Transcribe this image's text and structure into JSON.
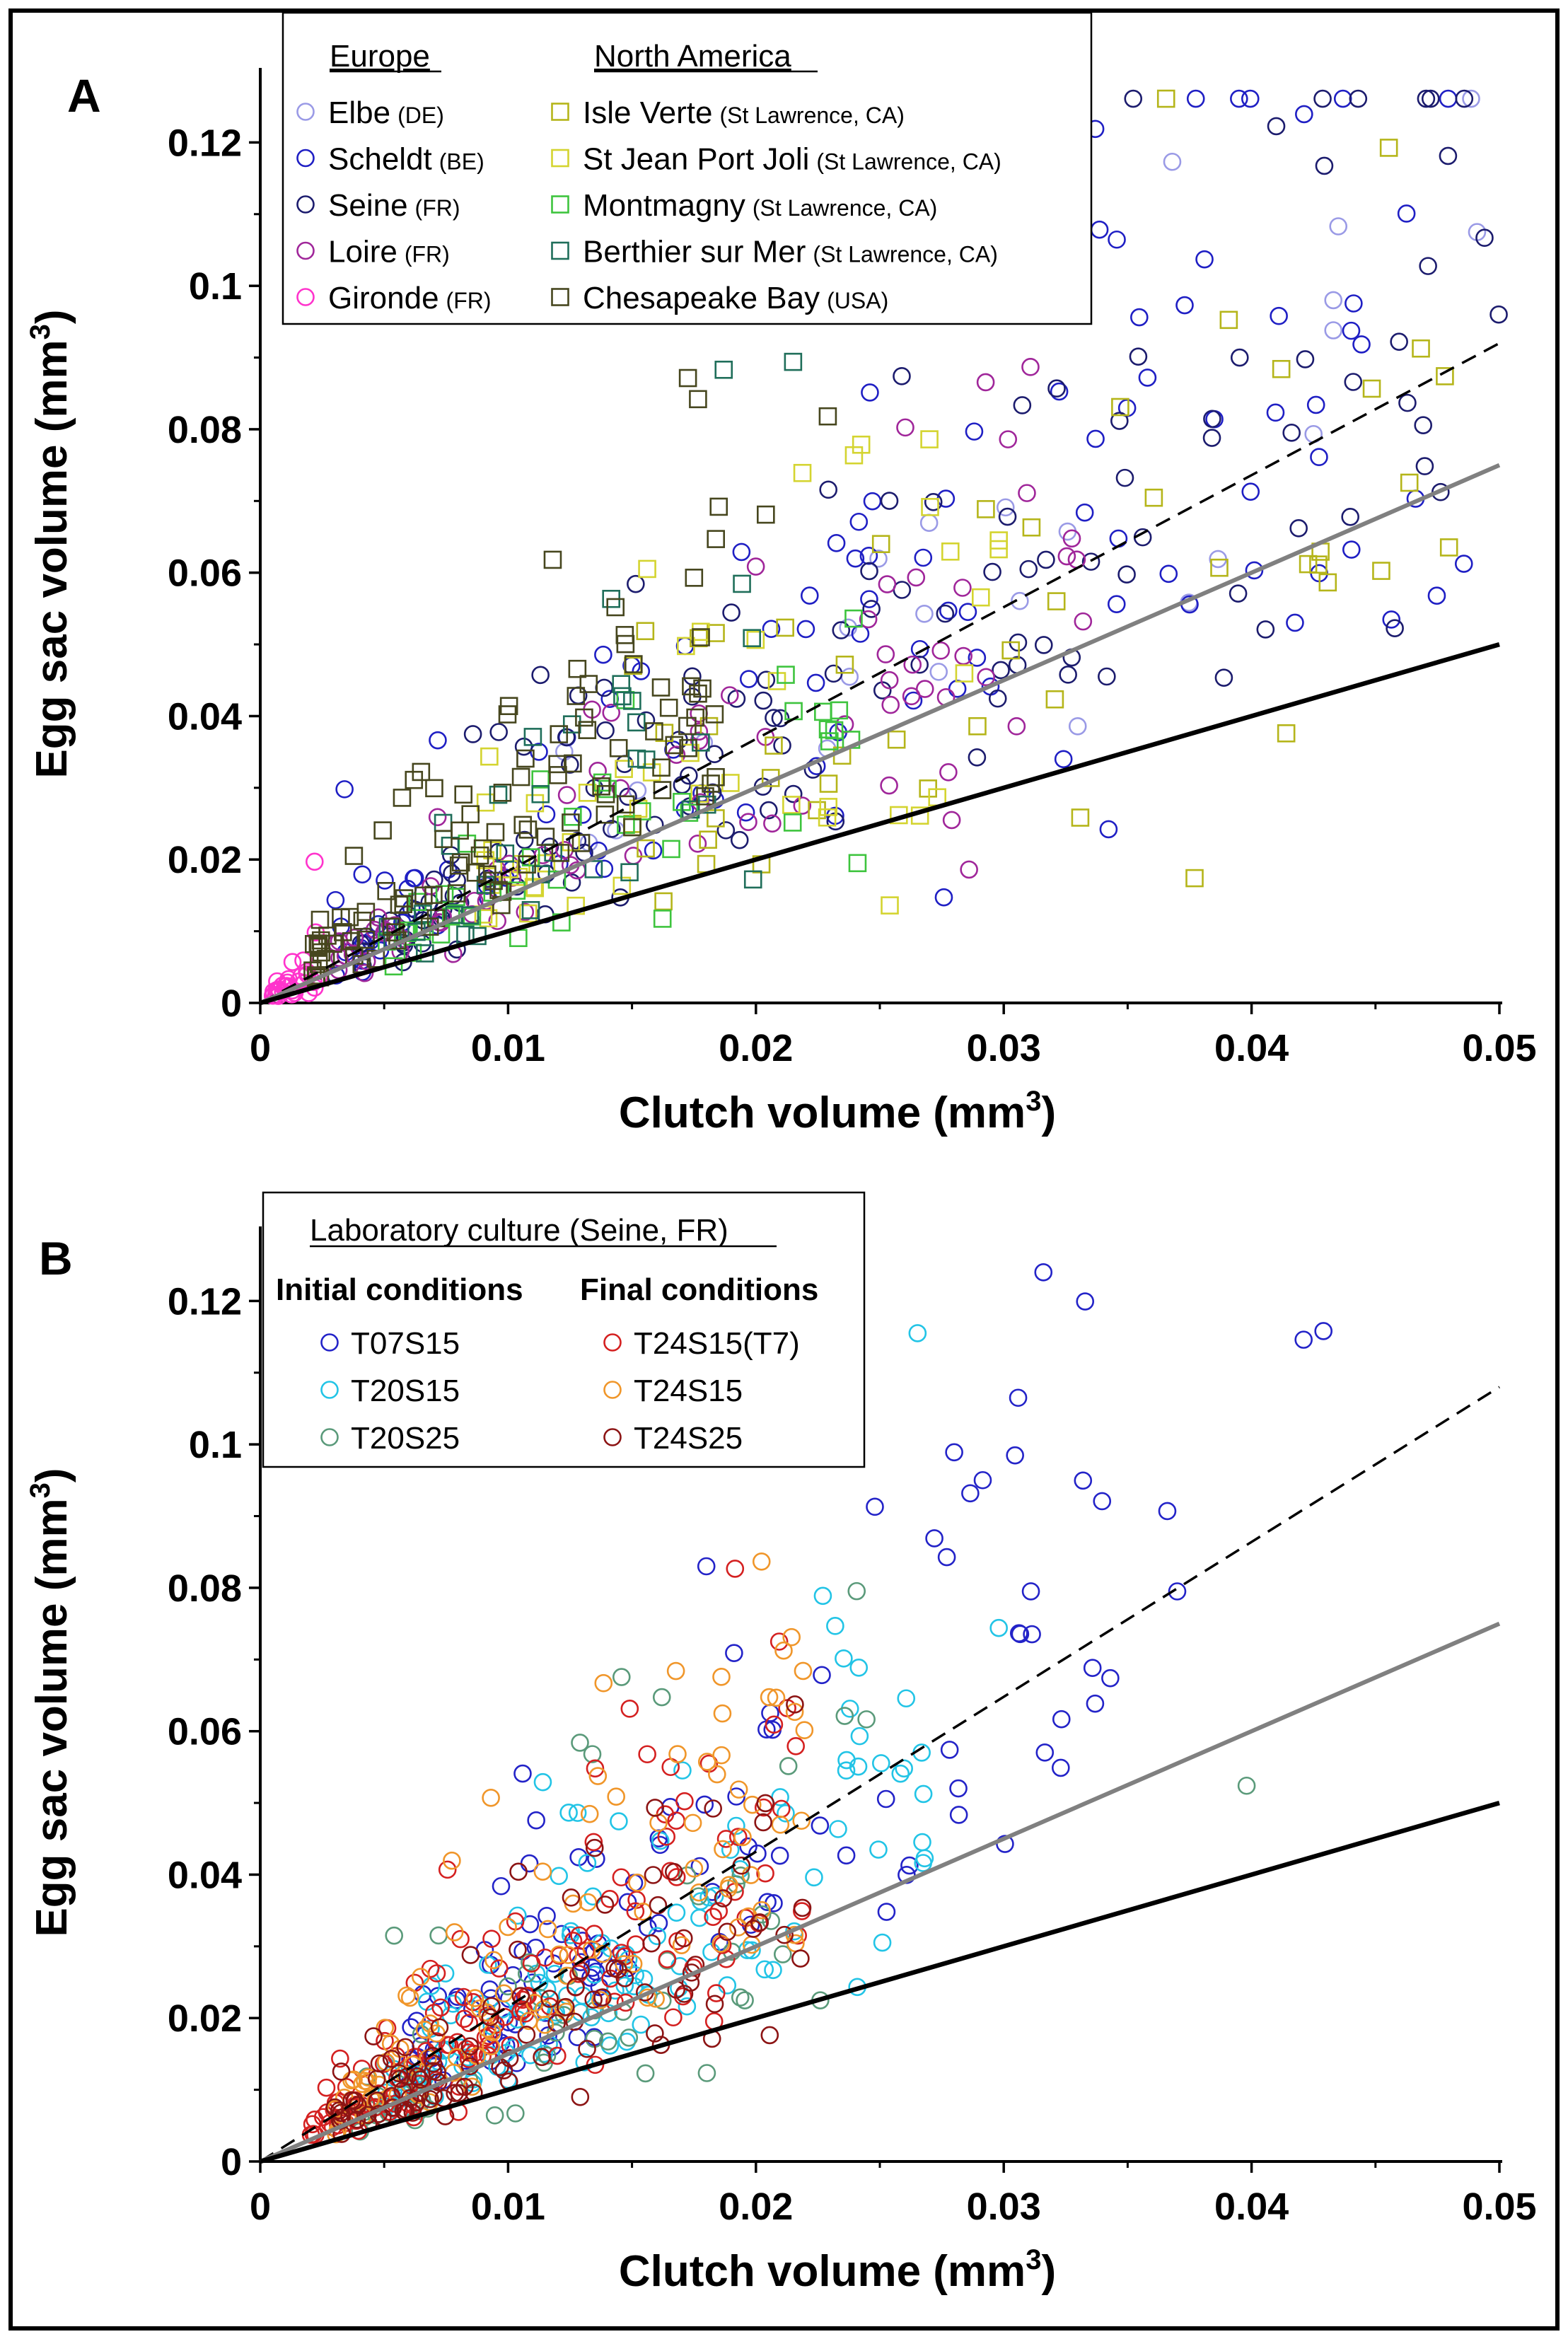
{
  "figure": {
    "description_free": true
  },
  "chart_data": [
    {
      "type": "scatter",
      "panel_label": "A",
      "xlabel": "Clutch volume (mm",
      "xlabel_sup": "3",
      "xlabel_close": ")",
      "ylabel": "Egg sac volume (mm",
      "ylabel_sup": "3",
      "ylabel_close": ")",
      "xlim": [
        0,
        0.05
      ],
      "ylim": [
        0,
        0.13
      ],
      "x_ticks": [
        0,
        0.01,
        0.02,
        0.03,
        0.04,
        0.05
      ],
      "x_tick_labels": [
        "0",
        "0.01",
        "0.02",
        "0.03",
        "0.04",
        "0.05"
      ],
      "y_ticks": [
        0,
        0.02,
        0.04,
        0.06,
        0.08,
        0.1,
        0.12
      ],
      "y_tick_labels": [
        "0",
        "0.02",
        "0.04",
        "0.06",
        "0.08",
        "0.1",
        "0.12"
      ],
      "legend_position": "top-left",
      "legend_groups": [
        {
          "heading": "Europe",
          "series": [
            {
              "name": "Elbe",
              "suffix": "(DE)",
              "marker": "circle",
              "color": "#9a9ae6",
              "count": 20,
              "x_range": [
                0.012,
                0.05
              ],
              "slope": 2.1,
              "spread": 0.25,
              "extra": [
                [
                  0.0368,
                  0.1173
                ],
                [
                  0.0435,
                  0.1083
                ],
                [
                  0.0491,
                  0.1075
                ],
                [
                  0.0433,
                  0.098
                ],
                [
                  0.0433,
                  0.0938
                ]
              ]
            },
            {
              "name": "Scheldt",
              "suffix": "(BE)",
              "marker": "circle",
              "color": "#1f1fc4",
              "count": 110,
              "x_range": [
                0.003,
                0.049
              ],
              "slope": 2.0,
              "spread": 0.35,
              "extra": [
                [
                  0.0381,
                  0.1037
                ],
                [
                  0.0373,
                  0.0973
                ],
                [
                  0.0411,
                  0.0958
                ],
                [
                  0.0358,
                  0.0872
                ],
                [
                  0.0426,
                  0.0834
                ],
                [
                  0.0385,
                  0.0814
                ],
                [
                  0.0034,
                  0.0298
                ]
              ]
            },
            {
              "name": "Seine",
              "suffix": "(FR)",
              "marker": "circle",
              "color": "#1c1c6e",
              "count": 130,
              "x_range": [
                0.004,
                0.05
              ],
              "slope": 1.95,
              "spread": 0.32,
              "extra": [
                [
                  0.0494,
                  0.1067
                ],
                [
                  0.0441,
                  0.0866
                ],
                [
                  0.0419,
                  0.0662
                ],
                [
                  0.0384,
                  0.0788
                ],
                [
                  0.031,
                  0.0605
                ]
              ]
            },
            {
              "name": "Loire",
              "suffix": "(FR)",
              "marker": "circle",
              "color": "#a0269a",
              "count": 80,
              "x_range": [
                0.003,
                0.033
              ],
              "slope": 1.85,
              "spread": 0.3,
              "extra": [
                [
                  0.0332,
                  0.0532
                ],
                [
                  0.0286,
                  0.0186
                ],
                [
                  0.0279,
                  0.0255
                ]
              ]
            },
            {
              "name": "Gironde",
              "suffix": "(FR)",
              "marker": "circle",
              "color": "#ff33cc",
              "count": 30,
              "x_range": [
                0.0005,
                0.0025
              ],
              "slope": 1.9,
              "spread": 0.45,
              "extra": [
                [
                  0.0013,
                  0.0057
                ],
                [
                  0.0019,
                  0.004
                ]
              ]
            }
          ]
        },
        {
          "heading": "North America",
          "series": [
            {
              "name": "Isle Verte",
              "suffix": "(St Lawrence, CA)",
              "marker": "square",
              "color": "#b5b51a",
              "count": 45,
              "x_range": [
                0.015,
                0.049
              ],
              "slope": 1.65,
              "spread": 0.4,
              "extra": [
                [
                  0.0478,
                  0.0874
                ],
                [
                  0.0412,
                  0.0884
                ],
                [
                  0.0347,
                  0.0831
                ],
                [
                  0.0377,
                  0.0174
                ],
                [
                  0.0414,
                  0.0376
                ]
              ]
            },
            {
              "name": "St Jean Port Joli",
              "suffix": "(St Lawrence, CA)",
              "marker": "square",
              "color": "#d4d430",
              "count": 45,
              "x_range": [
                0.009,
                0.03
              ],
              "slope": 1.75,
              "spread": 0.4,
              "extra": [
                [
                  0.027,
                  0.0786
                ],
                [
                  0.0254,
                  0.0136
                ],
                [
                  0.0298,
                  0.0645
                ]
              ]
            },
            {
              "name": "Montmagny",
              "suffix": "(St Lawrence, CA)",
              "marker": "square",
              "color": "#3ec43e",
              "count": 40,
              "x_range": [
                0.005,
                0.025
              ],
              "slope": 1.6,
              "spread": 0.35,
              "extra": [
                [
                  0.0241,
                  0.0195
                ]
              ]
            },
            {
              "name": "Berthier sur Mer",
              "suffix": "(St Lawrence, CA)",
              "marker": "square",
              "color": "#1f6e5a",
              "count": 35,
              "x_range": [
                0.005,
                0.02
              ],
              "slope": 2.1,
              "spread": 0.35,
              "extra": [
                [
                  0.0187,
                  0.0883
                ],
                [
                  0.0215,
                  0.0894
                ]
              ]
            },
            {
              "name": "Chesapeake Bay",
              "suffix": "(USA)",
              "marker": "square",
              "color": "#46461e",
              "count": 110,
              "x_range": [
                0.002,
                0.019
              ],
              "slope": 2.6,
              "spread": 0.33,
              "extra": [
                [
                  0.0229,
                  0.0818
                ],
                [
                  0.0185,
                  0.0692
                ],
                [
                  0.0204,
                  0.0681
                ],
                [
                  0.0118,
                  0.0618
                ],
                [
                  0.0062,
                  0.0311
                ]
              ]
            }
          ]
        }
      ],
      "lines": [
        {
          "name": "dashed-fit",
          "style": "dashed",
          "color": "#000000",
          "points": [
            [
              0,
              0
            ],
            [
              0.05,
              0.092
            ]
          ]
        },
        {
          "name": "grey-fit",
          "style": "solid",
          "color": "#808080",
          "points": [
            [
              0,
              0
            ],
            [
              0.05,
              0.075
            ]
          ]
        },
        {
          "name": "black-fit",
          "style": "solid",
          "color": "#000000",
          "points": [
            [
              0,
              0
            ],
            [
              0.05,
              0.05
            ]
          ]
        }
      ],
      "seed": 11
    },
    {
      "type": "scatter",
      "panel_label": "B",
      "xlabel": "Clutch volume (mm",
      "xlabel_sup": "3",
      "xlabel_close": ")",
      "ylabel": "Egg sac volume (mm",
      "ylabel_sup": "3",
      "ylabel_close": ")",
      "xlim": [
        0,
        0.05
      ],
      "ylim": [
        0,
        0.13
      ],
      "x_ticks": [
        0,
        0.01,
        0.02,
        0.03,
        0.04,
        0.05
      ],
      "x_tick_labels": [
        "0",
        "0.01",
        "0.02",
        "0.03",
        "0.04",
        "0.05"
      ],
      "y_ticks": [
        0,
        0.02,
        0.04,
        0.06,
        0.08,
        0.1,
        0.12
      ],
      "y_tick_labels": [
        "0",
        "0.02",
        "0.04",
        "0.06",
        "0.08",
        "0.1",
        "0.12"
      ],
      "legend_position": "top-left",
      "legend_title": "Laboratory culture (Seine, FR)",
      "legend_groups": [
        {
          "heading": "Initial conditions",
          "series": [
            {
              "name": "T07S15",
              "suffix": "",
              "marker": "circle",
              "color": "#2323c8",
              "count": 110,
              "x_range": [
                0.006,
                0.034
              ],
              "slope": 2.35,
              "spread": 0.3,
              "extra": [
                [
                  0.0316,
                  0.124
                ],
                [
                  0.0429,
                  0.1158
                ],
                [
                  0.0421,
                  0.1146
                ],
                [
                  0.028,
                  0.0989
                ],
                [
                  0.0248,
                  0.0913
                ],
                [
                  0.0366,
                  0.0907
                ],
                [
                  0.0272,
                  0.0869
                ],
                [
                  0.018,
                  0.083
                ],
                [
                  0.037,
                  0.0795
                ],
                [
                  0.0343,
                  0.0674
                ],
                [
                  0.0323,
                  0.0549
                ]
              ]
            },
            {
              "name": "T20S15",
              "suffix": "",
              "marker": "circle",
              "color": "#22c4e6",
              "count": 130,
              "x_range": [
                0.005,
                0.027
              ],
              "slope": 2.0,
              "spread": 0.3,
              "extra": [
                [
                  0.0298,
                  0.0744
                ],
                [
                  0.0114,
                  0.0529
                ]
              ]
            },
            {
              "name": "T20S25",
              "suffix": "",
              "marker": "circle",
              "color": "#5a9a7a",
              "count": 60,
              "x_range": [
                0.004,
                0.025
              ],
              "slope": 1.6,
              "spread": 0.4,
              "extra": [
                [
                  0.0398,
                  0.0524
                ],
                [
                  0.0129,
                  0.0584
                ],
                [
                  0.0134,
                  0.0568
                ],
                [
                  0.0054,
                  0.0315
                ]
              ]
            }
          ]
        },
        {
          "heading": "Final conditions",
          "series": [
            {
              "name": "T24S15(T7)",
              "suffix": "",
              "marker": "circle",
              "color": "#d42020",
              "count": 150,
              "x_range": [
                0.002,
                0.022
              ],
              "slope": 2.1,
              "spread": 0.35,
              "extra": [
                [
                  0.0021,
                  0.0052
                ]
              ]
            },
            {
              "name": "T24S15",
              "suffix": "",
              "marker": "circle",
              "color": "#f0962a",
              "count": 110,
              "x_range": [
                0.003,
                0.022
              ],
              "slope": 2.3,
              "spread": 0.32,
              "extra": []
            },
            {
              "name": "T24S25",
              "suffix": "",
              "marker": "circle",
              "color": "#8c1414",
              "count": 110,
              "x_range": [
                0.003,
                0.022
              ],
              "slope": 1.7,
              "spread": 0.35,
              "extra": [
                [
                  0.0218,
                  0.0283
                ]
              ]
            }
          ]
        }
      ],
      "lines": [
        {
          "name": "dashed-fit",
          "style": "dashed",
          "color": "#000000",
          "points": [
            [
              0,
              0
            ],
            [
              0.05,
              0.108
            ]
          ]
        },
        {
          "name": "grey-fit",
          "style": "solid",
          "color": "#808080",
          "points": [
            [
              0,
              0
            ],
            [
              0.05,
              0.075
            ]
          ]
        },
        {
          "name": "black-fit",
          "style": "solid",
          "color": "#000000",
          "points": [
            [
              0,
              0
            ],
            [
              0.05,
              0.05
            ]
          ]
        }
      ],
      "seed": 29
    }
  ]
}
